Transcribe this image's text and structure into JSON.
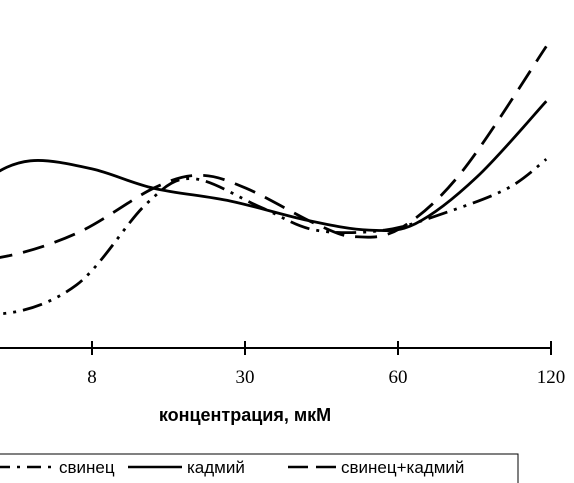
{
  "chart_data": {
    "type": "line",
    "xlabel": "концентрация, мкМ",
    "ylabel": "",
    "title": "",
    "grid": false,
    "legend_placement": "bottom",
    "categories": [
      "",
      "8",
      "30",
      "60",
      "120"
    ],
    "series": [
      {
        "name": "свинец",
        "style": "dash-dot-dot",
        "points": [
          [
            -0.3,
            0.36
          ],
          [
            -0.05,
            0.22
          ],
          [
            0.4,
            0.1
          ],
          [
            0.9,
            0.28
          ],
          [
            1.35,
            0.78
          ],
          [
            1.65,
            0.94
          ],
          [
            2.1,
            0.76
          ],
          [
            2.45,
            0.62
          ],
          [
            2.9,
            0.62
          ],
          [
            3.3,
            0.73
          ],
          [
            3.7,
            0.88
          ],
          [
            3.95,
            1.06
          ]
        ]
      },
      {
        "name": "кадмий",
        "style": "solid",
        "points": [
          [
            -0.3,
            0.48
          ],
          [
            -0.05,
            0.66
          ],
          [
            0.3,
            0.93
          ],
          [
            0.6,
            1.05
          ],
          [
            1.0,
            1.0
          ],
          [
            1.4,
            0.88
          ],
          [
            1.9,
            0.8
          ],
          [
            2.4,
            0.68
          ],
          [
            2.8,
            0.62
          ],
          [
            3.1,
            0.66
          ],
          [
            3.5,
            0.95
          ],
          [
            3.95,
            1.42
          ]
        ]
      },
      {
        "name": "свинец+кадмий",
        "style": "dash",
        "points": [
          [
            -0.3,
            0.45
          ],
          [
            -0.05,
            0.44
          ],
          [
            0.4,
            0.45
          ],
          [
            0.9,
            0.6
          ],
          [
            1.4,
            0.88
          ],
          [
            1.7,
            0.96
          ],
          [
            2.0,
            0.88
          ],
          [
            2.45,
            0.66
          ],
          [
            2.7,
            0.58
          ],
          [
            3.0,
            0.63
          ],
          [
            3.4,
            0.98
          ],
          [
            3.95,
            1.76
          ]
        ]
      }
    ],
    "colors": {
      "line": "#000000",
      "background": "#ffffff"
    }
  }
}
